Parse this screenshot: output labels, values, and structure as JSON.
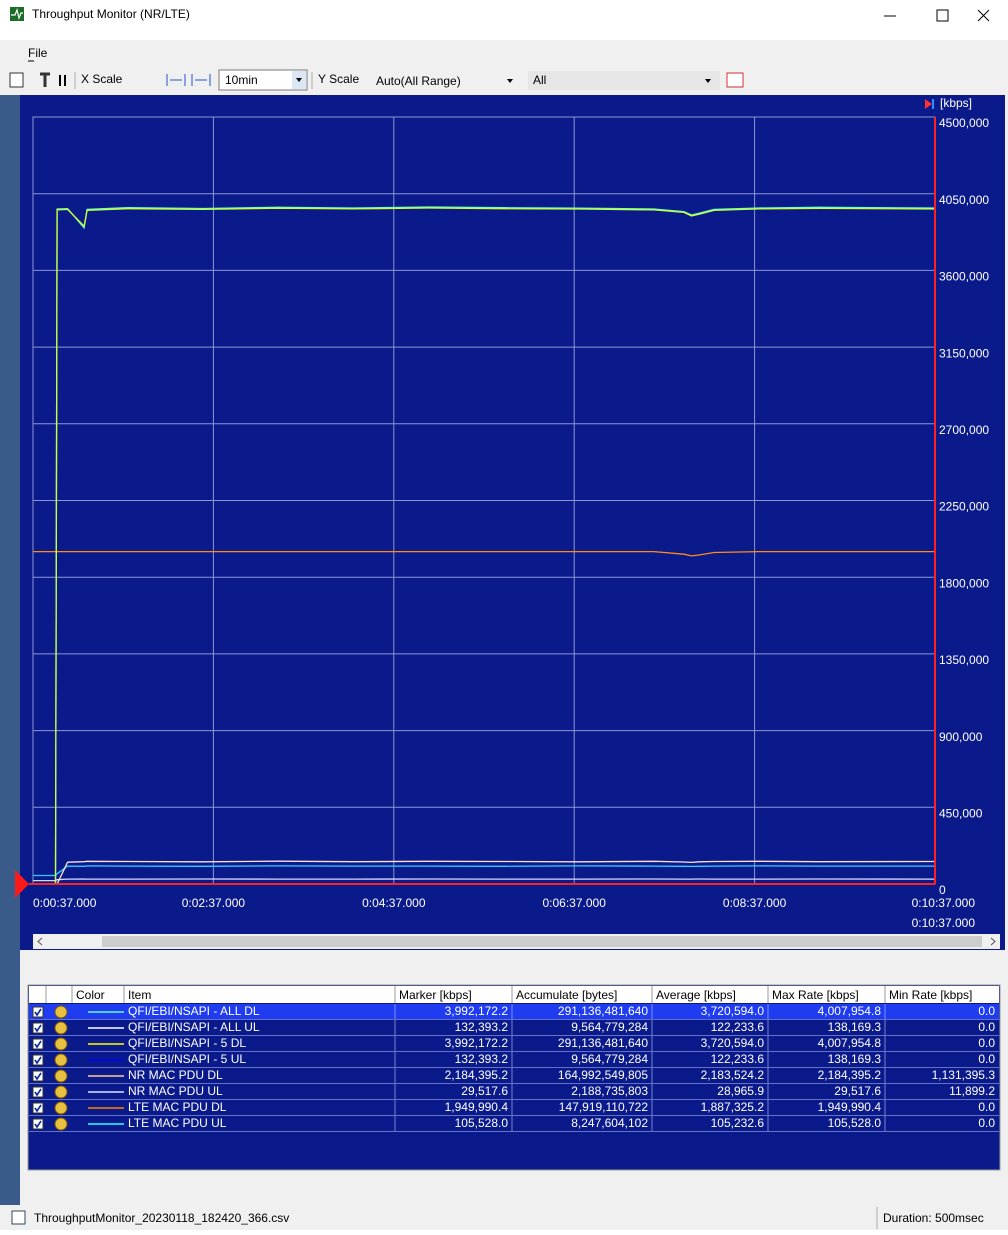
{
  "window": {
    "title": "Throughput Monitor (NR/LTE)",
    "menu": [
      "File"
    ]
  },
  "toolbar": {
    "x_scale_label": "X Scale",
    "x_scale_value": "10min",
    "y_scale_label": "Y Scale",
    "y_scale_value": "Auto(All Range)",
    "filter_value": "All"
  },
  "chart_data": {
    "type": "line",
    "y_unit": "[kbps]",
    "grid": true,
    "xlim": [
      37,
      637
    ],
    "xticks": [
      {
        "value": 37,
        "label": "0:00:37.000"
      },
      {
        "value": 157,
        "label": "0:02:37.000"
      },
      {
        "value": 277,
        "label": "0:04:37.000"
      },
      {
        "value": 397,
        "label": "0:06:37.000"
      },
      {
        "value": 517,
        "label": "0:08:37.000"
      },
      {
        "value": 637,
        "label": "0:10:37.000"
      }
    ],
    "scroll_position": "0:10:37.000",
    "ylim": [
      0,
      4500000
    ],
    "yticks": [
      {
        "value": 4500000,
        "label": "4500,000"
      },
      {
        "value": 4050000,
        "label": "4050,000"
      },
      {
        "value": 3600000,
        "label": "3600,000"
      },
      {
        "value": 3150000,
        "label": "3150,000"
      },
      {
        "value": 2700000,
        "label": "2700,000"
      },
      {
        "value": 2250000,
        "label": "2250,000"
      },
      {
        "value": 1800000,
        "label": "1800,000"
      },
      {
        "value": 1350000,
        "label": "1350,000"
      },
      {
        "value": 900000,
        "label": "900,000"
      },
      {
        "value": 450000,
        "label": "450,000"
      },
      0
    ],
    "x": [
      37,
      52,
      53,
      60,
      71,
      73,
      100,
      150,
      200,
      250,
      300,
      350,
      400,
      450,
      470,
      475,
      480,
      490,
      520,
      560,
      637
    ],
    "series": [
      {
        "color": "#ff8c1a",
        "values": [
          1950000,
          1950000,
          1950000,
          1950000,
          1950000,
          1950000,
          1950000,
          1950000,
          1950000,
          1950000,
          1950000,
          1950000,
          1950000,
          1950000,
          1935000,
          1925000,
          1930000,
          1945000,
          1950000,
          1950000,
          1950000
        ]
      },
      {
        "color": "#33ccff",
        "values": [
          50000,
          50000,
          60000,
          105000,
          104000,
          106000,
          105000,
          104000,
          106000,
          105000,
          105000,
          104000,
          106000,
          105000,
          104000,
          103000,
          104000,
          105000,
          106000,
          105000,
          105000
        ]
      },
      {
        "color": "#d8d8ff",
        "values": [
          20000,
          20000,
          25000,
          29000,
          29500,
          29000,
          29000,
          29500,
          29000,
          29000,
          29500,
          29000,
          29000,
          29500,
          29000,
          29000,
          29500,
          29000,
          29000,
          29500,
          29000
        ]
      },
      {
        "color": "#ffe0e0",
        "values": [
          0,
          0,
          0,
          128000,
          131000,
          133000,
          132000,
          130000,
          134000,
          131000,
          133000,
          132000,
          130000,
          133000,
          129000,
          127000,
          130000,
          132000,
          133000,
          131000,
          132000
        ]
      },
      {
        "color": "#66ffcc",
        "values": [
          0,
          0,
          3960000,
          3962000,
          3850000,
          3958000,
          3968000,
          3963000,
          3970000,
          3966000,
          3972000,
          3968000,
          3965000,
          3960000,
          3945000,
          3925000,
          3935000,
          3958000,
          3966000,
          3970000,
          3966000
        ]
      },
      {
        "color": "#ccff33",
        "values": [
          0,
          0,
          3955000,
          3958000,
          3860000,
          3952000,
          3962000,
          3958000,
          3965000,
          3961000,
          3966000,
          3962000,
          3960000,
          3955000,
          3940000,
          3920000,
          3930000,
          3952000,
          3961000,
          3964000,
          3960000
        ]
      }
    ]
  },
  "table": {
    "headers": [
      "Color",
      "Item",
      "Marker [kbps]",
      "Accumulate [bytes]",
      "Average [kbps]",
      "Max Rate [kbps]",
      "Min Rate [kbps]"
    ],
    "rows": [
      {
        "selected": true,
        "checked": true,
        "color": "#66ffcc",
        "cells": [
          "QFI/EBI/NSAPI - ALL DL",
          "3,992,172.2",
          "291,136,481,640",
          "3,720,594.0",
          "4,007,954.8",
          "0.0"
        ]
      },
      {
        "selected": false,
        "checked": true,
        "color": "#ffffff",
        "cells": [
          "QFI/EBI/NSAPI - ALL UL",
          "132,393.2",
          "9,564,779,284",
          "122,233.6",
          "138,169.3",
          "0.0"
        ]
      },
      {
        "selected": false,
        "checked": true,
        "color": "#ffff00",
        "cells": [
          "QFI/EBI/NSAPI - 5 DL",
          "3,992,172.2",
          "291,136,481,640",
          "3,720,594.0",
          "4,007,954.8",
          "0.0"
        ]
      },
      {
        "selected": false,
        "checked": true,
        "color": "#0000ff",
        "cells": [
          "QFI/EBI/NSAPI - 5 UL",
          "132,393.2",
          "9,564,779,284",
          "122,233.6",
          "138,169.3",
          "0.0"
        ]
      },
      {
        "selected": false,
        "checked": true,
        "color": "#ffcc99",
        "cells": [
          "NR MAC PDU DL",
          "2,184,395.2",
          "164,992,549,805",
          "2,183,524.2",
          "2,184,395.2",
          "1,131,395.3"
        ]
      },
      {
        "selected": false,
        "checked": true,
        "color": "#e0e0ff",
        "cells": [
          "NR MAC PDU UL",
          "29,517.6",
          "2,188,735,803",
          "28,965.9",
          "29,517.6",
          "11,899.2"
        ]
      },
      {
        "selected": false,
        "checked": true,
        "color": "#ff8000",
        "cells": [
          "LTE MAC PDU DL",
          "1,949,990.4",
          "147,919,110,722",
          "1,887,325.2",
          "1,949,990.4",
          "0.0"
        ]
      },
      {
        "selected": false,
        "checked": true,
        "color": "#33ffff",
        "cells": [
          "LTE MAC PDU UL",
          "105,528.0",
          "8,247,604,102",
          "105,232.6",
          "105,528.0",
          "0.0"
        ]
      }
    ]
  },
  "status": {
    "file": "ThroughputMonitor_20230118_182420_366.csv",
    "duration": "Duration: 500msec"
  }
}
